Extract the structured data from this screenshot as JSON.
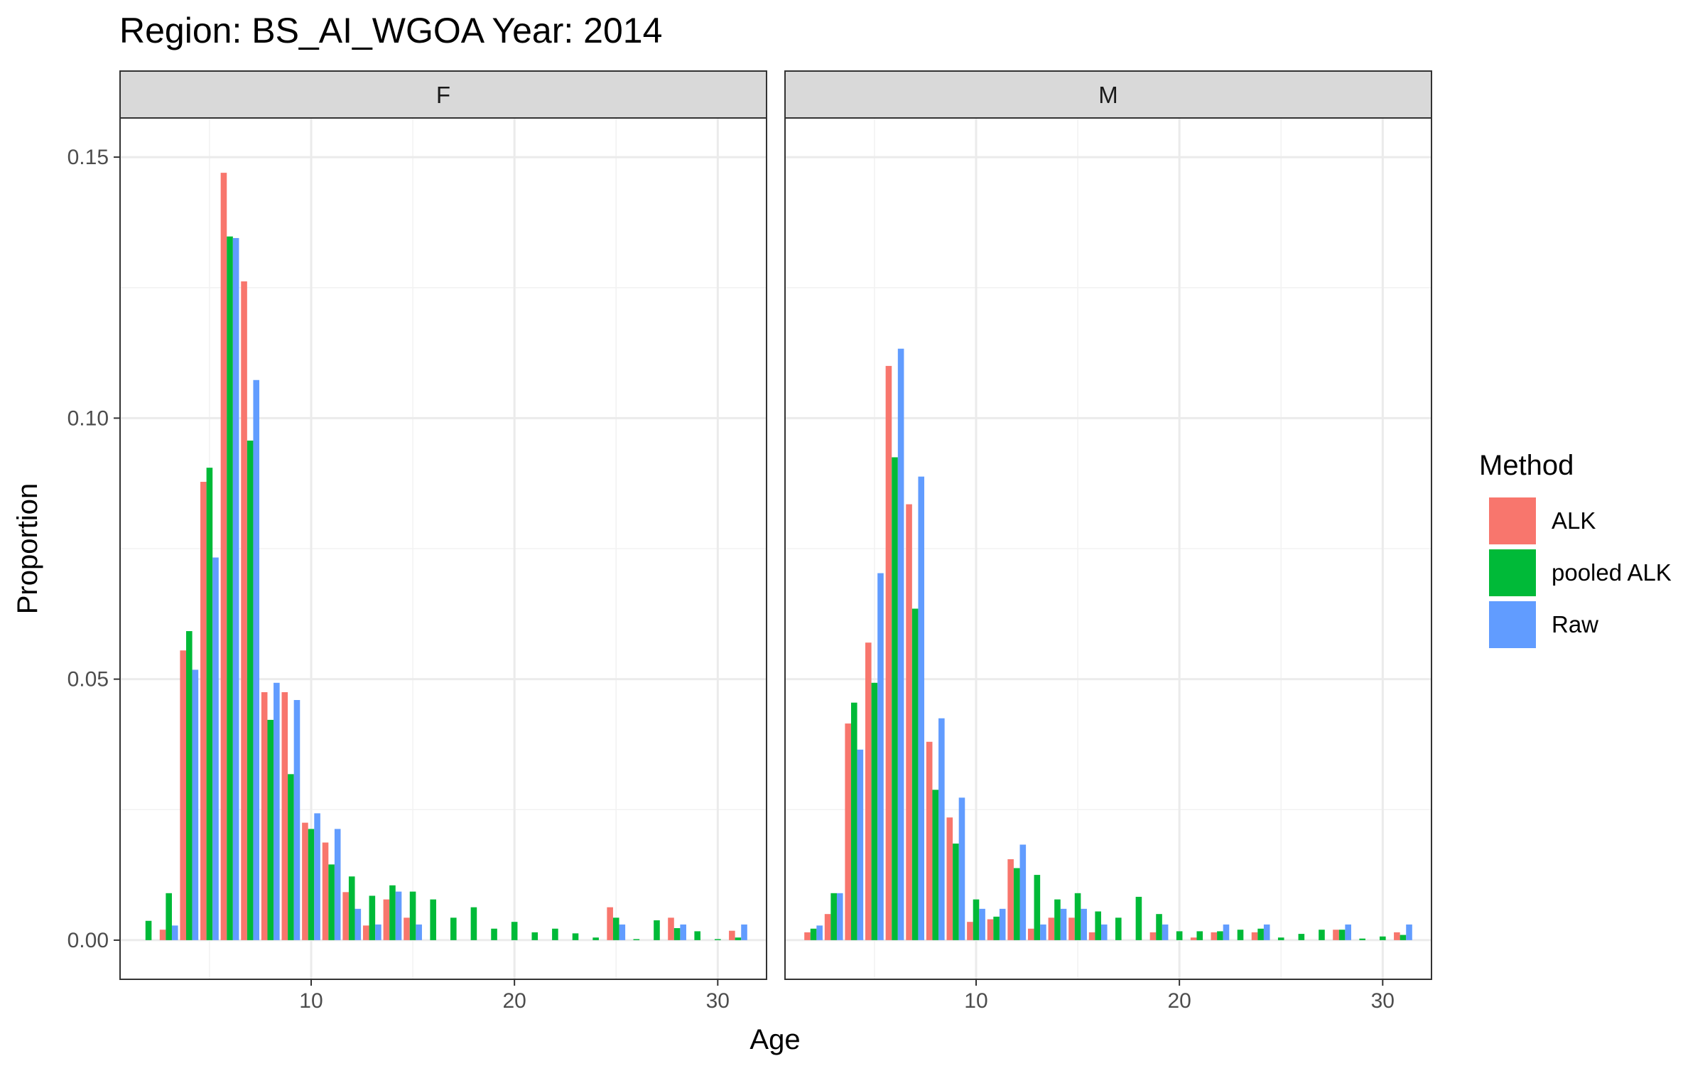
{
  "chart_data": {
    "type": "bar",
    "title": "Region: BS_AI_WGOA Year: 2014",
    "xlabel": "Age",
    "ylabel": "Proportion",
    "xlim": [
      0.6,
      32.4
    ],
    "ylim": [
      -0.0075,
      0.1575
    ],
    "x_ticks": [
      10,
      20,
      30
    ],
    "x_tick_labels": [
      "10",
      "20",
      "30"
    ],
    "y_ticks": [
      0,
      0.05,
      0.1,
      0.15
    ],
    "y_tick_labels": [
      "0.00",
      "0.05",
      "0.10",
      "0.15"
    ],
    "grid": true,
    "legend": {
      "title": "Method",
      "position": "right"
    },
    "series_styles": [
      {
        "name": "ALK",
        "color": "#F8766D"
      },
      {
        "name": "pooled ALK",
        "color": "#00BA38"
      },
      {
        "name": "Raw",
        "color": "#619CFF"
      }
    ],
    "panels": [
      {
        "label": "F",
        "series": [
          {
            "name": "ALK",
            "points": [
              [
                3,
                0.002
              ],
              [
                4,
                0.0555
              ],
              [
                5,
                0.0878
              ],
              [
                6,
                0.147
              ],
              [
                7,
                0.1262
              ],
              [
                8,
                0.0475
              ],
              [
                9,
                0.0475
              ],
              [
                10,
                0.0225
              ],
              [
                11,
                0.0187
              ],
              [
                12,
                0.0092
              ],
              [
                13,
                0.0028
              ],
              [
                14,
                0.0078
              ],
              [
                15,
                0.0043
              ],
              [
                25,
                0.0063
              ],
              [
                28,
                0.0043
              ],
              [
                31,
                0.0018
              ]
            ]
          },
          {
            "name": "pooled ALK",
            "points": [
              [
                2,
                0.0037
              ],
              [
                3,
                0.009
              ],
              [
                4,
                0.0592
              ],
              [
                5,
                0.0905
              ],
              [
                6,
                0.1348
              ],
              [
                7,
                0.0957
              ],
              [
                8,
                0.0422
              ],
              [
                9,
                0.0318
              ],
              [
                10,
                0.0213
              ],
              [
                11,
                0.0145
              ],
              [
                12,
                0.0122
              ],
              [
                13,
                0.0085
              ],
              [
                14,
                0.0105
              ],
              [
                15,
                0.0093
              ],
              [
                16,
                0.0078
              ],
              [
                17,
                0.0043
              ],
              [
                18,
                0.0063
              ],
              [
                19,
                0.0022
              ],
              [
                20,
                0.0035
              ],
              [
                21,
                0.0015
              ],
              [
                22,
                0.0022
              ],
              [
                23,
                0.0013
              ],
              [
                24,
                0.0005
              ],
              [
                25,
                0.0043
              ],
              [
                26,
                0.0002
              ],
              [
                27,
                0.0038
              ],
              [
                28,
                0.0023
              ],
              [
                29,
                0.0017
              ],
              [
                30,
                0.0002
              ],
              [
                31,
                0.0005
              ]
            ]
          },
          {
            "name": "Raw",
            "points": [
              [
                3,
                0.0028
              ],
              [
                4,
                0.0518
              ],
              [
                5,
                0.0733
              ],
              [
                6,
                0.1345
              ],
              [
                7,
                0.1073
              ],
              [
                8,
                0.0493
              ],
              [
                9,
                0.046
              ],
              [
                10,
                0.0243
              ],
              [
                11,
                0.0213
              ],
              [
                12,
                0.006
              ],
              [
                13,
                0.003
              ],
              [
                14,
                0.0093
              ],
              [
                15,
                0.003
              ],
              [
                25,
                0.003
              ],
              [
                28,
                0.003
              ],
              [
                31,
                0.003
              ]
            ]
          }
        ]
      },
      {
        "label": "M",
        "series": [
          {
            "name": "ALK",
            "points": [
              [
                2,
                0.0015
              ],
              [
                3,
                0.005
              ],
              [
                4,
                0.0415
              ],
              [
                5,
                0.057
              ],
              [
                6,
                0.11
              ],
              [
                7,
                0.0835
              ],
              [
                8,
                0.038
              ],
              [
                9,
                0.0235
              ],
              [
                10,
                0.0035
              ],
              [
                11,
                0.004
              ],
              [
                12,
                0.0155
              ],
              [
                13,
                0.0022
              ],
              [
                14,
                0.0043
              ],
              [
                15,
                0.0043
              ],
              [
                16,
                0.0015
              ],
              [
                19,
                0.0015
              ],
              [
                21,
                0.0005
              ],
              [
                22,
                0.0015
              ],
              [
                24,
                0.0015
              ],
              [
                28,
                0.002
              ],
              [
                31,
                0.0015
              ]
            ]
          },
          {
            "name": "pooled ALK",
            "points": [
              [
                2,
                0.0022
              ],
              [
                3,
                0.009
              ],
              [
                4,
                0.0455
              ],
              [
                5,
                0.0493
              ],
              [
                6,
                0.0925
              ],
              [
                7,
                0.0635
              ],
              [
                8,
                0.0288
              ],
              [
                9,
                0.0185
              ],
              [
                10,
                0.0078
              ],
              [
                11,
                0.0045
              ],
              [
                12,
                0.0138
              ],
              [
                13,
                0.0125
              ],
              [
                14,
                0.0078
              ],
              [
                15,
                0.009
              ],
              [
                16,
                0.0055
              ],
              [
                17,
                0.0043
              ],
              [
                18,
                0.0083
              ],
              [
                19,
                0.005
              ],
              [
                20,
                0.0017
              ],
              [
                21,
                0.0017
              ],
              [
                22,
                0.0017
              ],
              [
                23,
                0.002
              ],
              [
                24,
                0.0022
              ],
              [
                25,
                0.0005
              ],
              [
                26,
                0.0012
              ],
              [
                27,
                0.002
              ],
              [
                28,
                0.002
              ],
              [
                29,
                0.0003
              ],
              [
                30,
                0.0007
              ],
              [
                31,
                0.001
              ]
            ]
          },
          {
            "name": "Raw",
            "points": [
              [
                2,
                0.0028
              ],
              [
                3,
                0.009
              ],
              [
                4,
                0.0365
              ],
              [
                5,
                0.0703
              ],
              [
                6,
                0.1133
              ],
              [
                7,
                0.0888
              ],
              [
                8,
                0.0425
              ],
              [
                9,
                0.0273
              ],
              [
                10,
                0.006
              ],
              [
                11,
                0.006
              ],
              [
                12,
                0.0183
              ],
              [
                13,
                0.003
              ],
              [
                14,
                0.006
              ],
              [
                15,
                0.006
              ],
              [
                16,
                0.003
              ],
              [
                19,
                0.003
              ],
              [
                22,
                0.003
              ],
              [
                24,
                0.003
              ],
              [
                28,
                0.003
              ],
              [
                31,
                0.003
              ]
            ]
          }
        ]
      }
    ]
  }
}
